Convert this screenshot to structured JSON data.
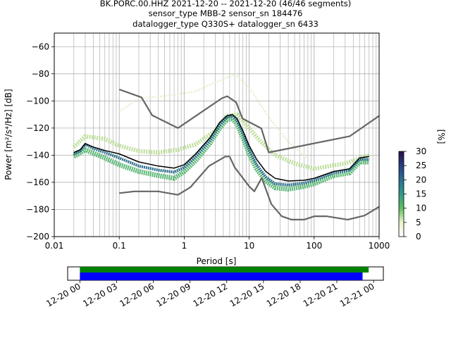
{
  "chart_data": {
    "type": "line",
    "title_lines": [
      "BK.PORC.00.HHZ   2021-12-20 -- 2021-12-20  (46/46 segments)",
      "sensor_type MBB-2 sensor_sn 184476",
      "datalogger_type Q330S+ datalogger_sn 6433"
    ],
    "xlabel": "Period [s]",
    "ylabel": "Power [m²/s⁴/Hz] [dB]",
    "x_scale": "log",
    "xlim": [
      0.01,
      1000
    ],
    "ylim": [
      -200,
      -50
    ],
    "x_ticks": [
      0.01,
      0.1,
      1,
      10,
      100,
      1000
    ],
    "x_tick_labels": [
      "0.01",
      "0.1",
      "1",
      "10",
      "100",
      "1000"
    ],
    "y_ticks": [
      -200,
      -180,
      -160,
      -140,
      -120,
      -100,
      -80,
      -60
    ],
    "y_tick_labels": [
      "−200",
      "−180",
      "−160",
      "−140",
      "−120",
      "−100",
      "−80",
      "−60"
    ],
    "grid": true,
    "colorbar": {
      "label": "[%]",
      "min": 0,
      "max": 30,
      "ticks": [
        0,
        5,
        10,
        15,
        20,
        25,
        30
      ],
      "tick_labels": [
        "0",
        "5",
        "10",
        "15",
        "20",
        "25",
        "30"
      ]
    },
    "series": [
      {
        "role": "noise model high",
        "color": "#666666",
        "points": [
          [
            0.1,
            -91.5
          ],
          [
            0.22,
            -97.4
          ],
          [
            0.32,
            -110.5
          ],
          [
            0.8,
            -120
          ],
          [
            3.8,
            -98
          ],
          [
            4.6,
            -96.5
          ],
          [
            6.3,
            -101
          ],
          [
            7.9,
            -113
          ],
          [
            15.4,
            -120.3
          ],
          [
            20,
            -138
          ],
          [
            354,
            -126
          ],
          [
            1000,
            -111
          ]
        ]
      },
      {
        "role": "noise model low",
        "color": "#666666",
        "points": [
          [
            0.1,
            -168
          ],
          [
            0.17,
            -166.7
          ],
          [
            0.4,
            -166.7
          ],
          [
            0.8,
            -169.2
          ],
          [
            1.24,
            -163.7
          ],
          [
            2.4,
            -148
          ],
          [
            4.3,
            -141
          ],
          [
            5,
            -141
          ],
          [
            6,
            -149
          ],
          [
            10,
            -163
          ],
          [
            12,
            -166.7
          ],
          [
            15.6,
            -156.7
          ],
          [
            21.9,
            -176
          ],
          [
            31.6,
            -185
          ],
          [
            45,
            -187.5
          ],
          [
            70,
            -187.5
          ],
          [
            101,
            -185
          ],
          [
            154,
            -185
          ],
          [
            328,
            -187.5
          ],
          [
            600,
            -184.5
          ],
          [
            1000,
            -178
          ]
        ]
      },
      {
        "role": "mode",
        "color": "#000000",
        "points": [
          [
            0.02,
            -138
          ],
          [
            0.025,
            -136
          ],
          [
            0.03,
            -131.5
          ],
          [
            0.04,
            -134
          ],
          [
            0.06,
            -136.5
          ],
          [
            0.1,
            -139
          ],
          [
            0.2,
            -145
          ],
          [
            0.4,
            -148
          ],
          [
            0.7,
            -149.5
          ],
          [
            1,
            -147
          ],
          [
            1.5,
            -139
          ],
          [
            2.5,
            -127
          ],
          [
            3.5,
            -116
          ],
          [
            4.5,
            -111
          ],
          [
            5.5,
            -110
          ],
          [
            6.5,
            -113
          ],
          [
            8,
            -122
          ],
          [
            10,
            -133
          ],
          [
            13,
            -143
          ],
          [
            18,
            -152
          ],
          [
            25,
            -157
          ],
          [
            40,
            -159
          ],
          [
            70,
            -158.5
          ],
          [
            100,
            -157
          ],
          [
            200,
            -152
          ],
          [
            350,
            -150
          ],
          [
            500,
            -142
          ],
          [
            700,
            -141
          ]
        ]
      },
      {
        "role": "histogram core",
        "color": "#2b6e8c",
        "points": [
          [
            0.02,
            -139
          ],
          [
            0.025,
            -137
          ],
          [
            0.03,
            -132
          ],
          [
            0.04,
            -135
          ],
          [
            0.06,
            -138
          ],
          [
            0.1,
            -142
          ],
          [
            0.2,
            -148
          ],
          [
            0.4,
            -151
          ],
          [
            0.7,
            -152.5
          ],
          [
            1,
            -149
          ],
          [
            1.5,
            -141
          ],
          [
            2.5,
            -129
          ],
          [
            3.5,
            -118
          ],
          [
            4.5,
            -112
          ],
          [
            5.5,
            -111
          ],
          [
            6.5,
            -114.5
          ],
          [
            8,
            -124
          ],
          [
            10,
            -136
          ],
          [
            13,
            -147
          ],
          [
            18,
            -156
          ],
          [
            25,
            -161
          ],
          [
            40,
            -162
          ],
          [
            70,
            -160.5
          ],
          [
            100,
            -158.5
          ],
          [
            200,
            -153
          ],
          [
            350,
            -151
          ],
          [
            500,
            -143
          ],
          [
            700,
            -143
          ]
        ]
      },
      {
        "role": "histogram upper spread",
        "color": "#b5d98d",
        "points": [
          [
            0.02,
            -134
          ],
          [
            0.03,
            -126
          ],
          [
            0.06,
            -128
          ],
          [
            0.1,
            -133
          ],
          [
            0.2,
            -137
          ],
          [
            0.4,
            -138
          ],
          [
            0.8,
            -136
          ],
          [
            1.5,
            -132
          ],
          [
            3,
            -122
          ],
          [
            4.5,
            -111
          ],
          [
            6.5,
            -110
          ],
          [
            10,
            -120
          ],
          [
            15,
            -130
          ],
          [
            25,
            -140
          ],
          [
            50,
            -146
          ],
          [
            100,
            -150
          ],
          [
            300,
            -146
          ],
          [
            700,
            -140
          ]
        ]
      },
      {
        "role": "histogram lower spread",
        "color": "#4fb36c",
        "points": [
          [
            0.02,
            -141
          ],
          [
            0.03,
            -136
          ],
          [
            0.06,
            -142
          ],
          [
            0.1,
            -147
          ],
          [
            0.2,
            -152
          ],
          [
            0.4,
            -155
          ],
          [
            0.7,
            -157
          ],
          [
            1,
            -152
          ],
          [
            1.5,
            -144
          ],
          [
            2.5,
            -131
          ],
          [
            3.5,
            -120
          ],
          [
            4.5,
            -114
          ],
          [
            5.5,
            -113
          ],
          [
            6.5,
            -117
          ],
          [
            8,
            -127
          ],
          [
            10,
            -139
          ],
          [
            13,
            -150
          ],
          [
            18,
            -159
          ],
          [
            25,
            -164
          ],
          [
            40,
            -165
          ],
          [
            70,
            -163
          ],
          [
            100,
            -161
          ],
          [
            200,
            -155
          ],
          [
            350,
            -153
          ],
          [
            500,
            -145
          ],
          [
            700,
            -145
          ]
        ]
      },
      {
        "role": "histogram outlier",
        "color": "#dfeec7",
        "points": [
          [
            0.1,
            -108
          ],
          [
            0.2,
            -98
          ],
          [
            0.4,
            -97
          ],
          [
            0.8,
            -95
          ],
          [
            1.5,
            -93
          ],
          [
            2.5,
            -88
          ],
          [
            4,
            -84
          ],
          [
            6,
            -80
          ],
          [
            10,
            -90
          ],
          [
            20,
            -112
          ],
          [
            40,
            -130
          ],
          [
            80,
            -143
          ]
        ]
      }
    ],
    "coverage": {
      "tick_labels": [
        "12-20 00",
        "12-20 03",
        "12-20 06",
        "12-20 09",
        "12-20 12",
        "12-20 15",
        "12-20 18",
        "12-20 21",
        "12-21 00"
      ],
      "green_bar": [
        0.0,
        23.6
      ],
      "blue_bar": [
        0.0,
        23.1
      ],
      "range_hours": [
        -1.0,
        24.8
      ],
      "colors": {
        "green": "#008000",
        "blue": "#0000ff"
      }
    }
  }
}
